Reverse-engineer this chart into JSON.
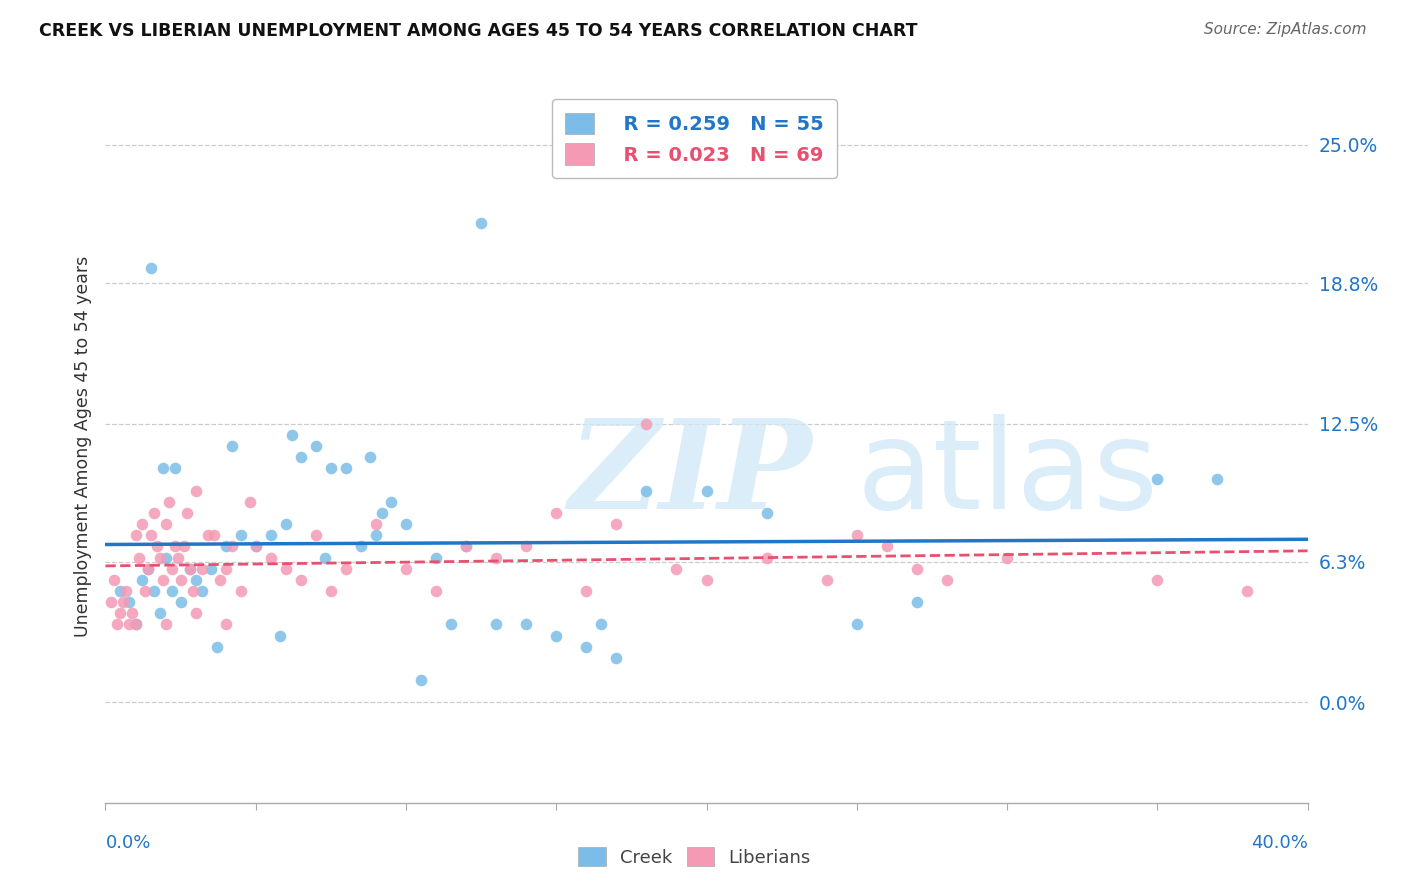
{
  "title": "CREEK VS LIBERIAN UNEMPLOYMENT AMONG AGES 45 TO 54 YEARS CORRELATION CHART",
  "source": "Source: ZipAtlas.com",
  "ylabel": "Unemployment Among Ages 45 to 54 years",
  "ytick_values": [
    0.0,
    6.3,
    12.5,
    18.8,
    25.0
  ],
  "xlim": [
    0.0,
    40.0
  ],
  "ylim": [
    -4.5,
    27.5
  ],
  "creek_color": "#7bbde8",
  "liberian_color": "#f49ab5",
  "creek_line_color": "#2176c7",
  "liberian_line_color": "#e85070",
  "legend_creek_R": "R = 0.259",
  "legend_creek_N": "N = 55",
  "legend_liberian_R": "R = 0.023",
  "legend_liberian_N": "N = 69",
  "creek_x": [
    0.5,
    0.8,
    1.0,
    1.2,
    1.4,
    1.5,
    1.6,
    1.8,
    1.9,
    2.0,
    2.2,
    2.3,
    2.5,
    2.8,
    3.0,
    3.2,
    3.5,
    3.7,
    4.0,
    4.2,
    4.5,
    5.0,
    5.5,
    5.8,
    6.0,
    6.2,
    6.5,
    7.0,
    7.3,
    7.5,
    8.0,
    8.5,
    8.8,
    9.0,
    9.2,
    9.5,
    10.0,
    10.5,
    11.0,
    11.5,
    12.0,
    12.5,
    13.0,
    14.0,
    15.0,
    16.0,
    16.5,
    17.0,
    18.0,
    20.0,
    22.0,
    25.0,
    27.0,
    35.0,
    37.0
  ],
  "creek_y": [
    5.0,
    4.5,
    3.5,
    5.5,
    6.0,
    19.5,
    5.0,
    4.0,
    10.5,
    6.5,
    5.0,
    10.5,
    4.5,
    6.0,
    5.5,
    5.0,
    6.0,
    2.5,
    7.0,
    11.5,
    7.5,
    7.0,
    7.5,
    3.0,
    8.0,
    12.0,
    11.0,
    11.5,
    6.5,
    10.5,
    10.5,
    7.0,
    11.0,
    7.5,
    8.5,
    9.0,
    8.0,
    1.0,
    6.5,
    3.5,
    7.0,
    21.5,
    3.5,
    3.5,
    3.0,
    2.5,
    3.5,
    2.0,
    9.5,
    9.5,
    8.5,
    3.5,
    4.5,
    10.0,
    10.0
  ],
  "liberian_x": [
    0.2,
    0.3,
    0.4,
    0.5,
    0.6,
    0.7,
    0.8,
    0.9,
    1.0,
    1.0,
    1.1,
    1.2,
    1.3,
    1.4,
    1.5,
    1.6,
    1.7,
    1.8,
    1.9,
    2.0,
    2.0,
    2.1,
    2.2,
    2.3,
    2.4,
    2.5,
    2.6,
    2.7,
    2.8,
    2.9,
    3.0,
    3.0,
    3.2,
    3.4,
    3.6,
    3.8,
    4.0,
    4.0,
    4.2,
    4.5,
    4.8,
    5.0,
    5.5,
    6.0,
    6.5,
    7.0,
    7.5,
    8.0,
    9.0,
    10.0,
    11.0,
    12.0,
    13.0,
    14.0,
    15.0,
    16.0,
    17.0,
    18.0,
    19.0,
    20.0,
    22.0,
    24.0,
    25.0,
    26.0,
    27.0,
    28.0,
    30.0,
    35.0,
    38.0
  ],
  "liberian_y": [
    4.5,
    5.5,
    3.5,
    4.0,
    4.5,
    5.0,
    3.5,
    4.0,
    7.5,
    3.5,
    6.5,
    8.0,
    5.0,
    6.0,
    7.5,
    8.5,
    7.0,
    6.5,
    5.5,
    8.0,
    3.5,
    9.0,
    6.0,
    7.0,
    6.5,
    5.5,
    7.0,
    8.5,
    6.0,
    5.0,
    9.5,
    4.0,
    6.0,
    7.5,
    7.5,
    5.5,
    6.0,
    3.5,
    7.0,
    5.0,
    9.0,
    7.0,
    6.5,
    6.0,
    5.5,
    7.5,
    5.0,
    6.0,
    8.0,
    6.0,
    5.0,
    7.0,
    6.5,
    7.0,
    8.5,
    5.0,
    8.0,
    12.5,
    6.0,
    5.5,
    6.5,
    5.5,
    7.5,
    7.0,
    6.0,
    5.5,
    6.5,
    5.5,
    5.0
  ]
}
